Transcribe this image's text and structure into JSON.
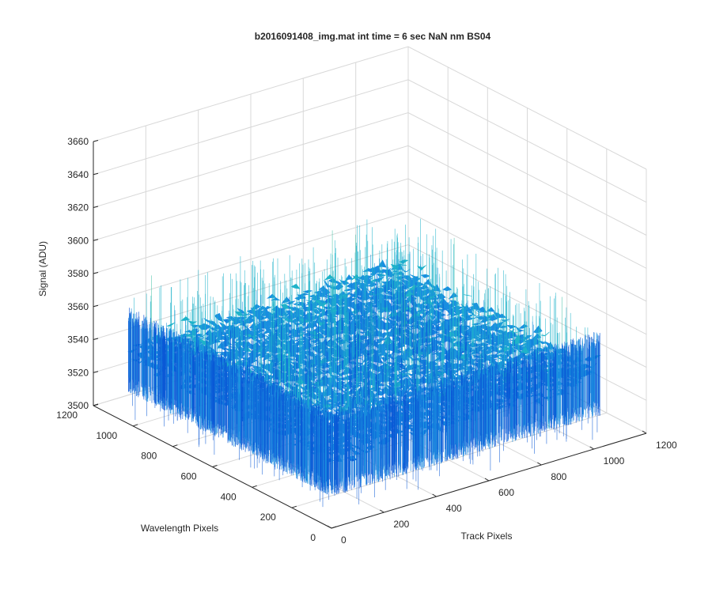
{
  "chart_data": {
    "type": "surface",
    "title": "b2016091408_img.mat int time = 6 sec  NaN nm BS04",
    "xlabel": "Track Pixels",
    "ylabel": "Wavelength Pixels",
    "zlabel": "Signal (ADU)",
    "xlim": [
      0,
      1200
    ],
    "ylim": [
      0,
      1200
    ],
    "zlim": [
      3500,
      3660
    ],
    "x_ticks": [
      "0",
      "200",
      "400",
      "600",
      "800",
      "1000",
      "1200"
    ],
    "y_ticks": [
      "0",
      "200",
      "400",
      "600",
      "800",
      "1000",
      "1200"
    ],
    "z_ticks": [
      "3500",
      "3520",
      "3540",
      "3560",
      "3580",
      "3600",
      "3620",
      "3640",
      "3660"
    ],
    "data_extent": {
      "x": [
        0,
        1024
      ],
      "y": [
        0,
        1024
      ]
    },
    "signal_mean": 3545,
    "signal_spread": [
      3520,
      3600
    ],
    "grid": true,
    "colormap": [
      "#0a58d6",
      "#1a8ee0",
      "#1fb3c9",
      "#45c2a6",
      "#a8d36a"
    ]
  }
}
